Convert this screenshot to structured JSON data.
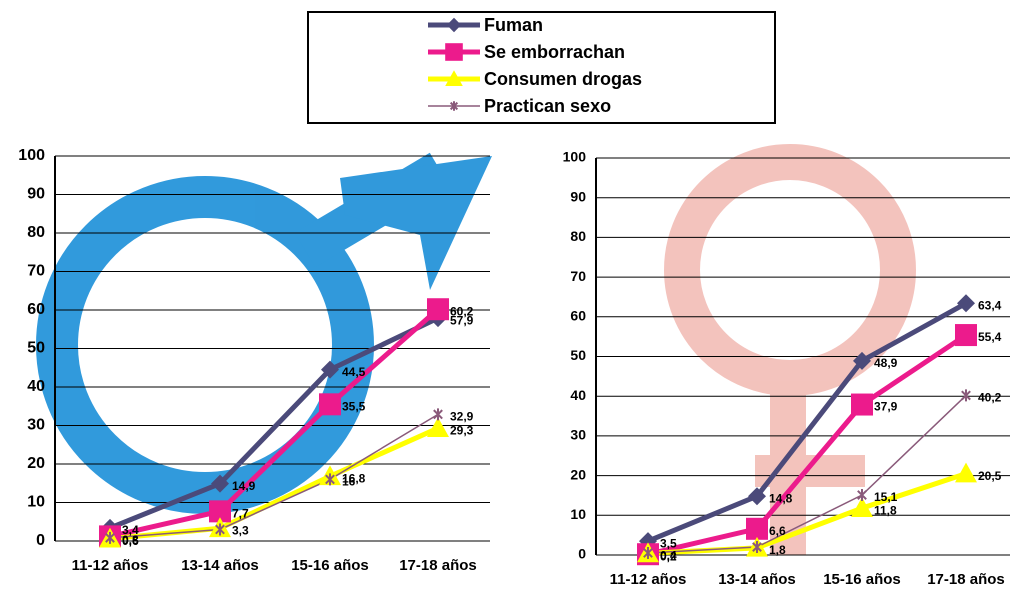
{
  "chart_data": [
    {
      "type": "line",
      "categories": [
        "11-12 años",
        "13-14 años",
        "15-16 años",
        "17-18 años"
      ],
      "ylim": [
        0,
        100
      ],
      "yticks": [
        0,
        10,
        20,
        30,
        40,
        50,
        60,
        70,
        80,
        90,
        100
      ],
      "grid": true,
      "legend": "top",
      "series": [
        {
          "name": "Fuman",
          "color": "#4b4a7a",
          "marker": "diamond",
          "values": [
            3.4,
            14.9,
            44.5,
            57.9
          ],
          "value_labels": [
            "3,4",
            "14,9",
            "44,5",
            "57,9"
          ]
        },
        {
          "name": "Se emborrachan",
          "color": "#ec1b8c",
          "marker": "square",
          "values": [
            1.2,
            7.7,
            35.5,
            60.2
          ],
          "value_labels": [
            null,
            "7,7",
            "35,5",
            "60,2"
          ]
        },
        {
          "name": "Consumen drogas",
          "color": "#ffff00",
          "marker": "triangle",
          "values": [
            0.6,
            3.3,
            16.8,
            29.3
          ],
          "value_labels": [
            "0,6",
            "3,3",
            "16,8",
            "29,3"
          ]
        },
        {
          "name": "Practican sexo",
          "color": "#8a5a7a",
          "marker": "star",
          "values": [
            0.8,
            3,
            16,
            32.9
          ],
          "value_labels": [
            "0,8",
            null,
            "16",
            "32,9"
          ]
        }
      ]
    },
    {
      "type": "line",
      "categories": [
        "11-12 años",
        "13-14 años",
        "15-16 años",
        "17-18 años"
      ],
      "ylim": [
        0,
        100
      ],
      "yticks": [
        0,
        10,
        20,
        30,
        40,
        50,
        60,
        70,
        80,
        90,
        100
      ],
      "grid": true,
      "series": [
        {
          "color": "#4b4a7a",
          "marker": "diamond",
          "values": [
            3.5,
            14.8,
            48.9,
            63.4
          ],
          "value_labels": [
            "3,5",
            "14,8",
            "48,9",
            "63,4"
          ]
        },
        {
          "color": "#ec1b8c",
          "marker": "square",
          "values": [
            0.2,
            6.6,
            37.9,
            55.4
          ],
          "value_labels": [
            "0,2",
            "6,6",
            "37,9",
            "55,4"
          ]
        },
        {
          "color": "#ffff00",
          "marker": "triangle",
          "values": [
            0.4,
            1.8,
            11.8,
            20.5
          ],
          "value_labels": [
            "0,4",
            "1,8",
            "11,8",
            "20,5"
          ]
        },
        {
          "color": "#8a5a7a",
          "marker": "star",
          "values": [
            0.5,
            2,
            15.1,
            40.2
          ],
          "value_labels": [
            null,
            null,
            "15,1",
            "40,2"
          ]
        }
      ]
    }
  ]
}
